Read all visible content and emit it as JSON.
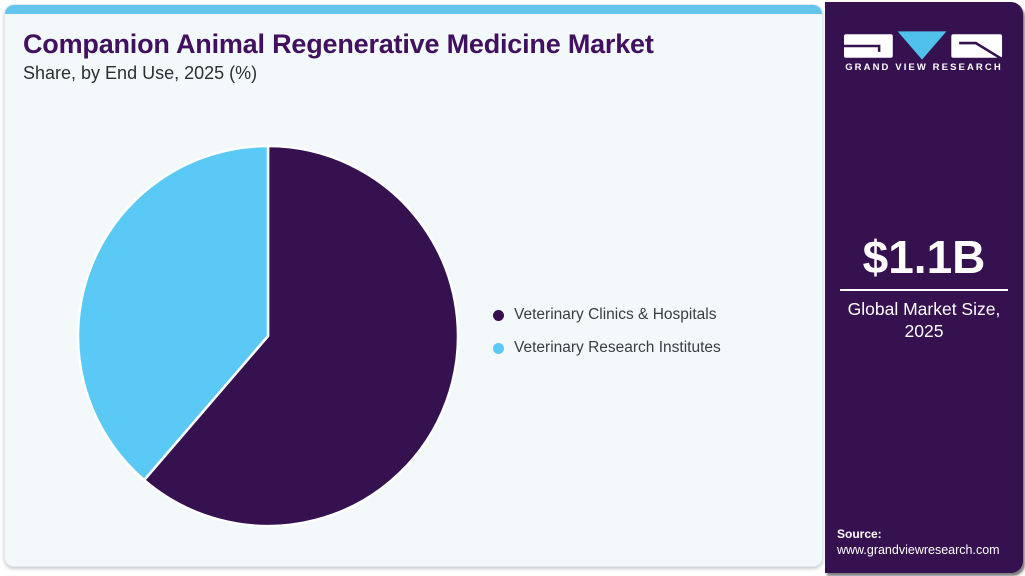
{
  "header": {
    "title": "Companion Animal Regenerative Medicine Market",
    "subtitle": "Share, by End Use, 2025 (%)"
  },
  "brand": {
    "name": "GRAND VIEW RESEARCH"
  },
  "stat": {
    "value": "$1.1B",
    "label_line1": "Global Market Size,",
    "label_line2": "2025"
  },
  "source": {
    "label": "Source:",
    "url": "www.grandviewresearch.com"
  },
  "chart_data": {
    "type": "pie",
    "title": "Companion Animal Regenerative Medicine Market Share, by End Use, 2025 (%)",
    "labels": [
      "Veterinary Clinics & Hospitals",
      "Veterinary Research Institutes"
    ],
    "values": [
      61.3,
      38.7
    ],
    "unit": "%",
    "colors": [
      "#351150",
      "#5BC9F5"
    ],
    "start_angle_deg": 0,
    "direction": "clockwise",
    "legend_position": "right",
    "data_labels_shown": false,
    "note": "Slice percentages estimated from segment angles; no numeric labels are shown in the figure."
  },
  "colors": {
    "brand_purple": "#351150",
    "accent_blue": "#5BC9F5",
    "topbar_blue": "#63C5EE",
    "logo_triangle_blue": "#4FC1EA",
    "panel_background": "#F3F8FB",
    "title_purple": "#41105F",
    "legend_text": "#3C3C44",
    "white": "#FFFFFF"
  }
}
